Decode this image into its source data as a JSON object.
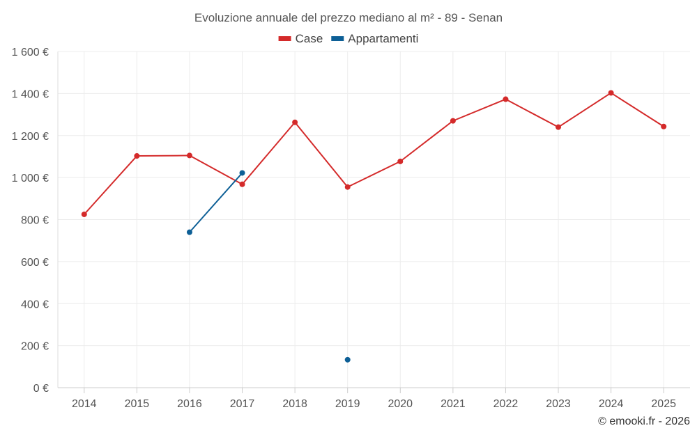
{
  "chart_data": {
    "type": "line",
    "title": "Evoluzione annuale del prezzo mediano al m² - 89 - Senan",
    "categories": [
      "2014",
      "2015",
      "2016",
      "2017",
      "2018",
      "2019",
      "2020",
      "2021",
      "2022",
      "2023",
      "2024",
      "2025"
    ],
    "y_ticks": [
      "0 €",
      "200 €",
      "400 €",
      "600 €",
      "800 €",
      "1 000 €",
      "1 200 €",
      "1 400 €",
      "1 600 €"
    ],
    "ylim": [
      0,
      1600
    ],
    "grid": true,
    "legend_position": "top-center",
    "series": [
      {
        "name": "Case",
        "color": "#d42a2a",
        "values": [
          825,
          1103,
          1105,
          968,
          1263,
          955,
          1077,
          1270,
          1373,
          1240,
          1403,
          1243
        ]
      },
      {
        "name": "Appartamenti",
        "color": "#0d5f96",
        "values": [
          null,
          null,
          740,
          1022,
          null,
          133,
          null,
          null,
          null,
          null,
          null,
          null
        ]
      }
    ],
    "credit": "© emooki.fr - 2026"
  }
}
